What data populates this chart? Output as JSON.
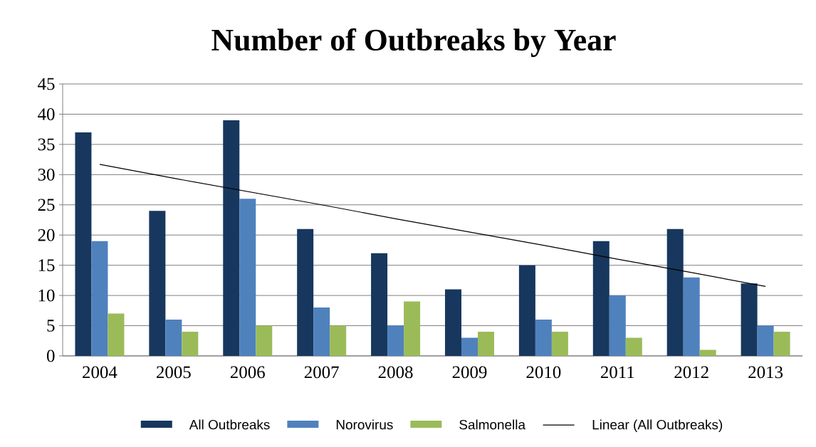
{
  "chart_data": {
    "type": "bar",
    "title": "Number of Outbreaks by Year",
    "categories": [
      "2004",
      "2005",
      "2006",
      "2007",
      "2008",
      "2009",
      "2010",
      "2011",
      "2012",
      "2013"
    ],
    "series": [
      {
        "name": "All Outbreaks",
        "color": "#17375e",
        "values": [
          37,
          24,
          39,
          21,
          17,
          11,
          15,
          19,
          21,
          12
        ]
      },
      {
        "name": "Norovirus",
        "color": "#4f81bd",
        "values": [
          19,
          6,
          26,
          8,
          5,
          3,
          6,
          10,
          13,
          5
        ]
      },
      {
        "name": "Salmonella",
        "color": "#9bbb59",
        "values": [
          7,
          4,
          5,
          5,
          9,
          4,
          4,
          3,
          1,
          4
        ]
      },
      {
        "name": "Linear (All Outbreaks)",
        "type": "line",
        "color": "#000000",
        "values": [
          31.7,
          29.4,
          27.2,
          25.0,
          22.7,
          20.5,
          18.3,
          16.0,
          13.8,
          11.5
        ]
      }
    ],
    "ylim": [
      0,
      45
    ],
    "yticks": [
      0,
      5,
      10,
      15,
      20,
      25,
      30,
      35,
      40,
      45
    ],
    "grid": "y",
    "legend": "bottom",
    "marker": "none"
  }
}
